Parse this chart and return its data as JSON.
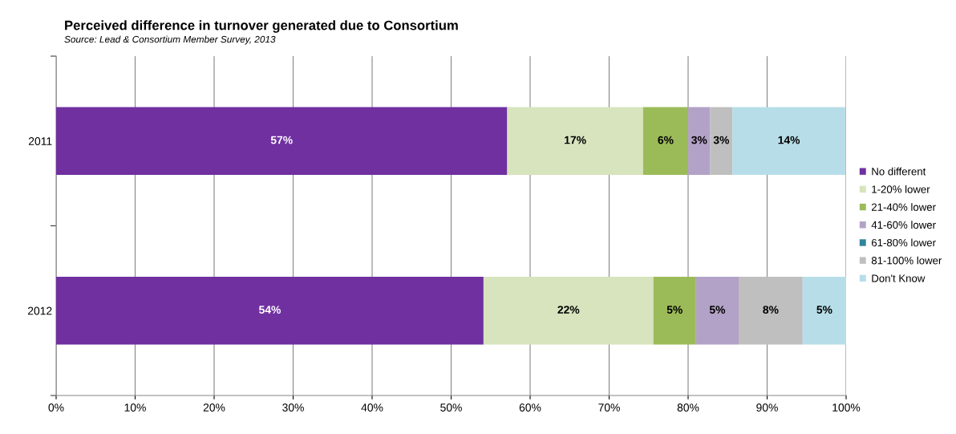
{
  "chart_data": {
    "type": "bar",
    "orientation": "horizontal",
    "stacked": true,
    "title": "Perceived difference in turnover generated due to Consortium",
    "subtitle": "Source: Lead & Consortium Member Survey, 2013",
    "categories": [
      "2011",
      "2012"
    ],
    "series": [
      {
        "name": "No different",
        "color": "#7030a0",
        "values": [
          57.1,
          54.1
        ],
        "value_labels": [
          "57%",
          "54%"
        ]
      },
      {
        "name": "1-20% lower",
        "color": "#d7e4bd",
        "values": [
          17.2,
          21.5
        ],
        "value_labels": [
          "17%",
          "22%"
        ]
      },
      {
        "name": "21-40% lower",
        "color": "#9bbb59",
        "values": [
          5.7,
          5.4
        ],
        "value_labels": [
          "6%",
          "5%"
        ]
      },
      {
        "name": "41-60% lower",
        "color": "#b3a2c7",
        "values": [
          2.8,
          5.4
        ],
        "value_labels": [
          "3%",
          "5%"
        ]
      },
      {
        "name": "61-80% lower",
        "color": "#31859c",
        "values": [
          0,
          0
        ],
        "value_labels": [
          null,
          null
        ]
      },
      {
        "name": "81-100% lower",
        "color": "#bfbfbf",
        "values": [
          2.8,
          8.1
        ],
        "value_labels": [
          "3%",
          "8%"
        ]
      },
      {
        "name": "Don't Know",
        "color": "#b7dee8",
        "values": [
          14.3,
          5.5
        ],
        "value_labels": [
          "14%",
          "5%"
        ]
      }
    ],
    "xlim": [
      0,
      100
    ],
    "xticks": [
      {
        "value": 0,
        "label": "0%"
      },
      {
        "value": 10,
        "label": "10%"
      },
      {
        "value": 20,
        "label": "20%"
      },
      {
        "value": 30,
        "label": "30%"
      },
      {
        "value": 40,
        "label": "40%"
      },
      {
        "value": 50,
        "label": "50%"
      },
      {
        "value": 60,
        "label": "60%"
      },
      {
        "value": 70,
        "label": "70%"
      },
      {
        "value": 80,
        "label": "80%"
      },
      {
        "value": 90,
        "label": "90%"
      },
      {
        "value": 100,
        "label": "100%"
      }
    ],
    "grid": "x",
    "legend": "right"
  }
}
